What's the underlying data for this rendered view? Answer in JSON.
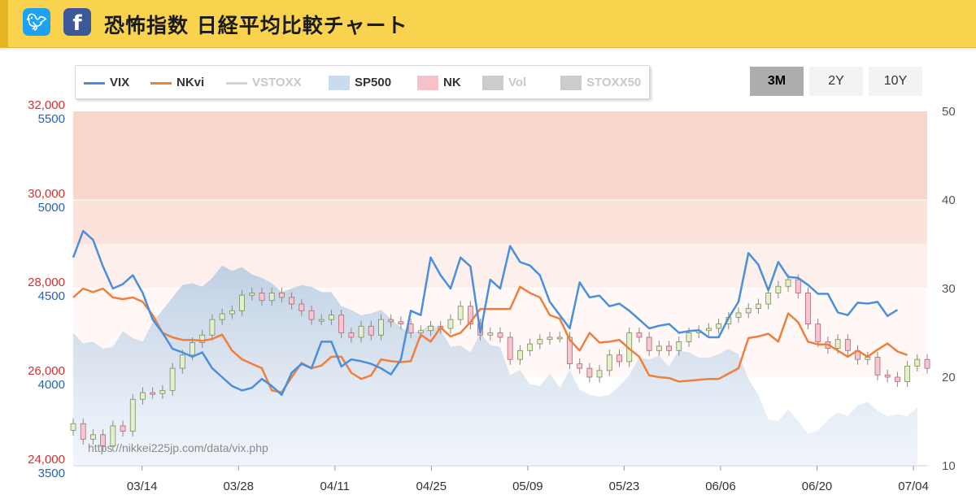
{
  "header": {
    "title": "恐怖指数 日経平均比較チャート",
    "twitter_icon": "twitter-bird-icon",
    "facebook_icon": "facebook-f-icon"
  },
  "legend": [
    {
      "label": "VIX",
      "color": "#4a8fdc",
      "kind": "line"
    },
    {
      "label": "NKvi",
      "color": "#f07f3c",
      "kind": "line"
    },
    {
      "label": "VSTOXX",
      "color": "#cccccc",
      "kind": "line",
      "hidden": true
    },
    {
      "label": "SP500",
      "color": "#c9dcef",
      "kind": "area"
    },
    {
      "label": "NK",
      "color": "#f6c1c9",
      "kind": "candle"
    },
    {
      "label": "Vol",
      "color": "#cccccc",
      "kind": "column",
      "hidden": true
    },
    {
      "label": "STOXX50",
      "color": "#cccccc",
      "kind": "area",
      "hidden": true
    }
  ],
  "range_buttons": [
    {
      "label": "3M",
      "active": true
    },
    {
      "label": "2Y",
      "active": false
    },
    {
      "label": "10Y",
      "active": false
    }
  ],
  "watermark": "https://nikkei225jp.com/data/vix.php",
  "chart_data": {
    "type": "line",
    "x_ticks": [
      "03/14",
      "03/28",
      "04/11",
      "04/25",
      "05/09",
      "05/23",
      "06/06",
      "06/20",
      "07/04"
    ],
    "axes": {
      "nk": {
        "ticks": [
          "24,000",
          "26,000",
          "28,000",
          "30,000",
          "32,000"
        ],
        "range": [
          24000,
          32000
        ],
        "color": "#cc3333"
      },
      "sp500": {
        "ticks": [
          "3500",
          "4000",
          "4500",
          "5000",
          "5500"
        ],
        "range": [
          3500,
          5500
        ],
        "color": "#2d62a8"
      },
      "volatility": {
        "ticks": [
          "10",
          "20",
          "30",
          "40",
          "50"
        ],
        "range": [
          10,
          50
        ],
        "color": "#555555"
      }
    },
    "bands": [
      {
        "from": 40,
        "to": 50,
        "color": "#f9d6cc"
      },
      {
        "from": 35,
        "to": 40,
        "color": "#fbe3dc"
      },
      {
        "from": 30,
        "to": 35,
        "color": "#fdf0ec"
      },
      {
        "from": 20,
        "to": 30,
        "color": "#fff8f6"
      }
    ],
    "n": 87,
    "series": [
      {
        "name": "VIX",
        "axis": "volatility",
        "color": "#4a8fdc",
        "values": [
          33.5,
          36.5,
          35.5,
          32.5,
          30,
          30.5,
          31.5,
          29.5,
          26.5,
          25,
          23.2,
          22.8,
          22.3,
          22.8,
          21,
          20,
          19,
          18.5,
          18.8,
          19.8,
          19,
          18,
          20.5,
          21.5,
          21,
          24,
          24,
          21.2,
          22,
          21.8,
          21.5,
          21,
          20.3,
          22,
          27.5,
          27,
          33.5,
          31.5,
          30,
          33.5,
          32.5,
          25,
          31,
          30,
          34.8,
          33,
          32.6,
          31.5,
          28.5,
          27,
          25.5,
          30.7,
          29,
          29.2,
          28,
          28.3,
          27.5,
          26.5,
          25.5,
          25.8,
          26,
          25,
          25.2,
          25.3,
          24.5,
          24.5,
          26.7,
          28.5,
          34,
          32.7,
          29.8,
          33,
          31.3,
          31.2,
          30.4,
          29.4,
          29.4,
          27.3,
          27,
          28.4,
          28.3,
          28.5,
          26.9,
          27.6,
          null,
          null,
          null
        ]
      },
      {
        "name": "NKvi",
        "axis": "volatility",
        "color": "#f07f3c",
        "values": [
          29,
          30,
          29.6,
          30,
          29,
          28.8,
          29,
          28.5,
          27,
          25,
          24.5,
          24.2,
          24.2,
          24.1,
          24.3,
          24.8,
          23,
          22,
          21.5,
          21,
          18.5,
          18.3,
          20,
          21.6,
          21,
          21.3,
          22.3,
          22.3,
          20.5,
          19.8,
          20.2,
          22,
          21.8,
          21.7,
          21.8,
          24.8,
          24,
          25.6,
          24.6,
          25,
          26.2,
          27.7,
          27.7,
          27.7,
          27.7,
          30.2,
          29.5,
          29,
          27,
          26.6,
          24.2,
          23,
          25,
          23.9,
          24,
          24.2,
          23.2,
          22.3,
          20.2,
          20,
          19.9,
          19.5,
          19.6,
          19.7,
          19.8,
          19.8,
          20.4,
          21,
          24.4,
          24.6,
          24.9,
          24,
          27.2,
          26.2,
          24,
          23.7,
          23.7,
          23,
          22.3,
          23,
          22.3,
          23.1,
          23.8,
          22.9,
          22.5,
          null,
          null
        ]
      },
      {
        "name": "SP500",
        "axis": "sp500",
        "color": "#c9dcef",
        "values": [
          4250,
          4190,
          4200,
          4160,
          4170,
          4260,
          4220,
          4200,
          4310,
          4380,
          4450,
          4520,
          4530,
          4510,
          4560,
          4630,
          4600,
          4620,
          4580,
          4560,
          4530,
          4480,
          4500,
          4520,
          4510,
          4480,
          4480,
          4400,
          4380,
          4350,
          4360,
          4380,
          4330,
          4280,
          4250,
          4260,
          4300,
          4270,
          4170,
          4180,
          4140,
          4250,
          4180,
          4170,
          4010,
          4040,
          3960,
          3950,
          4020,
          3940,
          4040,
          3930,
          3900,
          3890,
          3900,
          3950,
          4010,
          4110,
          4100,
          4120,
          4060,
          4150,
          4140,
          4110,
          4110,
          4130,
          4160,
          4130,
          3990,
          3900,
          3760,
          3750,
          3820,
          3750,
          3680,
          3700,
          3760,
          3800,
          3780,
          3840,
          3860,
          3810,
          3780,
          3790,
          3780,
          3830,
          null
        ]
      },
      {
        "name": "NK",
        "axis": "nk",
        "color": "#f6c1c9",
        "values": [
          24950,
          24600,
          24700,
          24450,
          24900,
          24780,
          25500,
          25650,
          25630,
          25700,
          26200,
          26500,
          26780,
          26950,
          27300,
          27430,
          27500,
          27850,
          27900,
          27730,
          27900,
          27800,
          27650,
          27500,
          27300,
          27300,
          27400,
          27000,
          26900,
          27150,
          26950,
          27300,
          27250,
          27200,
          27000,
          27050,
          27150,
          27100,
          27300,
          27600,
          27200,
          26950,
          27000,
          26900,
          26400,
          26600,
          26750,
          26850,
          26900,
          26900,
          26300,
          26200,
          26000,
          26150,
          26500,
          26350,
          27000,
          26900,
          26600,
          26700,
          26600,
          26800,
          27000,
          27050,
          27100,
          27200,
          27350,
          27450,
          27550,
          27650,
          27900,
          28050,
          28200,
          27900,
          27200,
          26800,
          26650,
          26850,
          26600,
          26400,
          26450,
          26050,
          26000,
          25900,
          26250,
          26400,
          26200
        ]
      }
    ]
  }
}
